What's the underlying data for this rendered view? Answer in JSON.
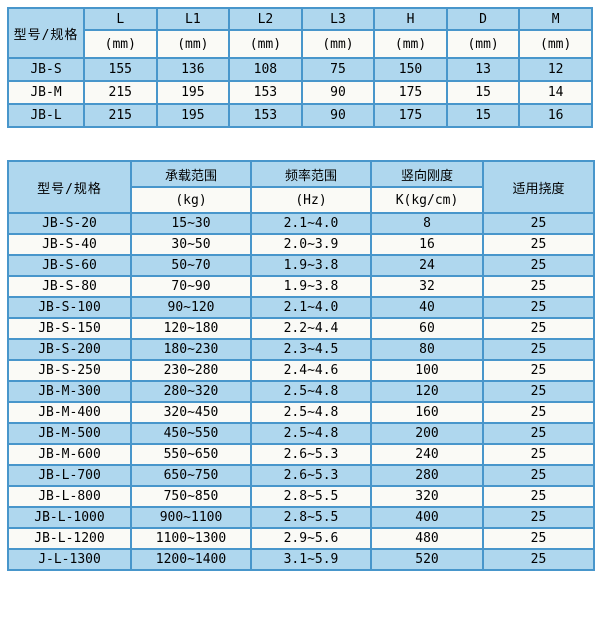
{
  "colors": {
    "border": "#4896CB",
    "row_light": "#AFD7EE",
    "row_white": "#FAFAF6",
    "text": "#000000",
    "background": "#FFFFFF"
  },
  "table1": {
    "corner_header": "型号/规格",
    "columns": [
      "L",
      "L1",
      "L2",
      "L3",
      "H",
      "D",
      "M"
    ],
    "units": [
      "(mm)",
      "(mm)",
      "(mm)",
      "(mm)",
      "(mm)",
      "(mm)",
      "(mm)"
    ],
    "rows": [
      {
        "model": "JB-S",
        "values": [
          "155",
          "136",
          "108",
          "75",
          "150",
          "13",
          "12"
        ]
      },
      {
        "model": "JB-M",
        "values": [
          "215",
          "195",
          "153",
          "90",
          "175",
          "15",
          "14"
        ]
      },
      {
        "model": "JB-L",
        "values": [
          "215",
          "195",
          "153",
          "90",
          "175",
          "15",
          "16"
        ]
      }
    ]
  },
  "table2": {
    "corner_header": "型号/规格",
    "groups": [
      {
        "title": "承载范围",
        "unit": "(kg)"
      },
      {
        "title": "频率范围",
        "unit": "(Hz)"
      },
      {
        "title": "竖向刚度",
        "unit": "K(kg/cm)"
      }
    ],
    "last_header": "适用挠度",
    "rows": [
      {
        "model": "JB-S-20",
        "load": "15~30",
        "freq": "2.1~4.0",
        "stiffness": "8",
        "deflection": "25"
      },
      {
        "model": "JB-S-40",
        "load": "30~50",
        "freq": "2.0~3.9",
        "stiffness": "16",
        "deflection": "25"
      },
      {
        "model": "JB-S-60",
        "load": "50~70",
        "freq": "1.9~3.8",
        "stiffness": "24",
        "deflection": "25"
      },
      {
        "model": "JB-S-80",
        "load": "70~90",
        "freq": "1.9~3.8",
        "stiffness": "32",
        "deflection": "25"
      },
      {
        "model": "JB-S-100",
        "load": "90~120",
        "freq": "2.1~4.0",
        "stiffness": "40",
        "deflection": "25"
      },
      {
        "model": "JB-S-150",
        "load": "120~180",
        "freq": "2.2~4.4",
        "stiffness": "60",
        "deflection": "25"
      },
      {
        "model": "JB-S-200",
        "load": "180~230",
        "freq": "2.3~4.5",
        "stiffness": "80",
        "deflection": "25"
      },
      {
        "model": "JB-S-250",
        "load": "230~280",
        "freq": "2.4~4.6",
        "stiffness": "100",
        "deflection": "25"
      },
      {
        "model": "JB-M-300",
        "load": "280~320",
        "freq": "2.5~4.8",
        "stiffness": "120",
        "deflection": "25"
      },
      {
        "model": "JB-M-400",
        "load": "320~450",
        "freq": "2.5~4.8",
        "stiffness": "160",
        "deflection": "25"
      },
      {
        "model": "JB-M-500",
        "load": "450~550",
        "freq": "2.5~4.8",
        "stiffness": "200",
        "deflection": "25"
      },
      {
        "model": "JB-M-600",
        "load": "550~650",
        "freq": "2.6~5.3",
        "stiffness": "240",
        "deflection": "25"
      },
      {
        "model": "JB-L-700",
        "load": "650~750",
        "freq": "2.6~5.3",
        "stiffness": "280",
        "deflection": "25"
      },
      {
        "model": "JB-L-800",
        "load": "750~850",
        "freq": "2.8~5.5",
        "stiffness": "320",
        "deflection": "25"
      },
      {
        "model": "JB-L-1000",
        "load": "900~1100",
        "freq": "2.8~5.5",
        "stiffness": "400",
        "deflection": "25"
      },
      {
        "model": "JB-L-1200",
        "load": "1100~1300",
        "freq": "2.9~5.6",
        "stiffness": "480",
        "deflection": "25"
      },
      {
        "model": "J-L-1300",
        "load": "1200~1400",
        "freq": "3.1~5.9",
        "stiffness": "520",
        "deflection": "25"
      }
    ]
  }
}
